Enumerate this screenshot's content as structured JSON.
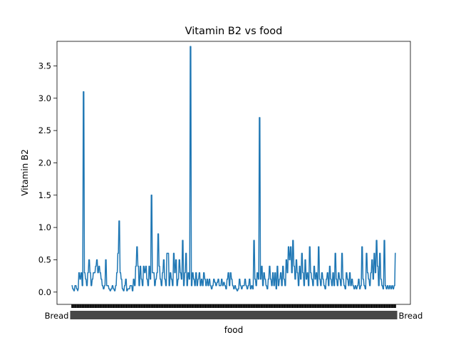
{
  "chart_data": {
    "type": "line",
    "title": "Vitamin B2 vs food",
    "xlabel": "food",
    "ylabel": "Vitamin B2",
    "ylim": [
      -0.19,
      3.88
    ],
    "yticks": [
      0.0,
      0.5,
      1.0,
      1.5,
      2.0,
      2.5,
      3.0,
      3.5
    ],
    "ytick_labels": [
      "0.0",
      "0.5",
      "1.0",
      "1.5",
      "2.0",
      "2.5",
      "3.0",
      "3.5"
    ],
    "grid": false,
    "legend": "none",
    "line_color": "#1f77b4",
    "x_note": "categorical food names; tick labels overlap into an unreadable band",
    "x_edge_labels": [
      "Bread",
      "Bread"
    ],
    "categories_count": 600,
    "series": [
      {
        "values": [
          0.1,
          0.1,
          0.05,
          0.05,
          0.02,
          0.02,
          0.1,
          0.1,
          0.1,
          0.05,
          0.05,
          0.02,
          0.05,
          0.3,
          0.3,
          0.2,
          0.2,
          0.3,
          0.3,
          0.1,
          0.1,
          3.1,
          3.1,
          0.3,
          0.3,
          0.2,
          0.2,
          0.1,
          0.1,
          0.3,
          0.3,
          0.5,
          0.5,
          0.3,
          0.3,
          0.1,
          0.1,
          0.2,
          0.2,
          0.3,
          0.3,
          0.3,
          0.3,
          0.4,
          0.4,
          0.5,
          0.5,
          0.3,
          0.3,
          0.4,
          0.4,
          0.3,
          0.3,
          0.2,
          0.2,
          0.1,
          0.1,
          0.05,
          0.05,
          0.1,
          0.1,
          0.5,
          0.5,
          0.1,
          0.1,
          0.1,
          0.1,
          0.05,
          0.05,
          0.02,
          0.02,
          0.05,
          0.05,
          0.1,
          0.1,
          0.05,
          0.05,
          0.02,
          0.02,
          0.1,
          0.1,
          0.3,
          0.3,
          0.6,
          0.6,
          1.1,
          1.1,
          0.3,
          0.3,
          0.2,
          0.2,
          0.05,
          0.05,
          0.02,
          0.02,
          0.1,
          0.1,
          0.2,
          0.2,
          0.02,
          0.02,
          0.05,
          0.05,
          0.05,
          0.05,
          0.1,
          0.1,
          0.1,
          0.1,
          0.02,
          0.02,
          0.2,
          0.2,
          0.1,
          0.1,
          0.4,
          0.4,
          0.7,
          0.7,
          0.4,
          0.4,
          0.1,
          0.1,
          0.4,
          0.4,
          0.2,
          0.2,
          0.1,
          0.1,
          0.4,
          0.4,
          0.3,
          0.3,
          0.4,
          0.4,
          0.2,
          0.2,
          0.1,
          0.1,
          0.4,
          0.4,
          0.2,
          0.2,
          1.5,
          1.5,
          0.3,
          0.3,
          0.3,
          0.3,
          0.1,
          0.1,
          0.2,
          0.2,
          0.3,
          0.3,
          0.9,
          0.9,
          0.4,
          0.4,
          0.2,
          0.2,
          0.1,
          0.1,
          0.3,
          0.3,
          0.5,
          0.5,
          0.2,
          0.2,
          0.1,
          0.1,
          0.6,
          0.6,
          0.6,
          0.6,
          0.1,
          0.1,
          0.3,
          0.3,
          0.2,
          0.2,
          0.1,
          0.1,
          0.6,
          0.6,
          0.3,
          0.3,
          0.5,
          0.5,
          0.1,
          0.1,
          0.2,
          0.2,
          0.5,
          0.5,
          0.3,
          0.3,
          0.2,
          0.2,
          0.8,
          0.8,
          0.1,
          0.1,
          0.3,
          0.3,
          0.6,
          0.6,
          0.1,
          0.1,
          0.3,
          0.3,
          0.2,
          0.2,
          3.8,
          3.8,
          0.1,
          0.1,
          0.3,
          0.3,
          0.2,
          0.2,
          0.1,
          0.1,
          0.3,
          0.3,
          0.1,
          0.1,
          0.2,
          0.2,
          0.3,
          0.3,
          0.1,
          0.1,
          0.2,
          0.2,
          0.1,
          0.1,
          0.3,
          0.3,
          0.2,
          0.2,
          0.1,
          0.1,
          0.2,
          0.2,
          0.1,
          0.1,
          0.2,
          0.2,
          0.1,
          0.1,
          0.05,
          0.05,
          0.1,
          0.1,
          0.2,
          0.2,
          0.15,
          0.15,
          0.1,
          0.1,
          0.15,
          0.15,
          0.2,
          0.2,
          0.1,
          0.1,
          0.1,
          0.1,
          0.2,
          0.2,
          0.1,
          0.1,
          0.15,
          0.15,
          0.1,
          0.1,
          0.05,
          0.05,
          0.2,
          0.2,
          0.3,
          0.3,
          0.1,
          0.1,
          0.3,
          0.3,
          0.2,
          0.2,
          0.1,
          0.1,
          0.05,
          0.05,
          0.1,
          0.1,
          0.05,
          0.05,
          0.02,
          0.02,
          0.05,
          0.05,
          0.2,
          0.2,
          0.1,
          0.1,
          0.05,
          0.05,
          0.1,
          0.1,
          0.1,
          0.1,
          0.2,
          0.2,
          0.1,
          0.1,
          0.05,
          0.05,
          0.1,
          0.1,
          0.2,
          0.2,
          0.05,
          0.05,
          0.1,
          0.1,
          0.05,
          0.05,
          0.8,
          0.8,
          0.2,
          0.2,
          0.1,
          0.1,
          0.3,
          0.3,
          0.2,
          0.2,
          2.7,
          2.7,
          0.2,
          0.2,
          0.4,
          0.4,
          0.1,
          0.1,
          0.3,
          0.3,
          0.2,
          0.2,
          0.1,
          0.1,
          0.05,
          0.05,
          0.2,
          0.2,
          0.4,
          0.4,
          0.2,
          0.2,
          0.1,
          0.1,
          0.3,
          0.3,
          0.1,
          0.1,
          0.3,
          0.3,
          0.05,
          0.05,
          0.4,
          0.4,
          0.1,
          0.1,
          0.2,
          0.2,
          0.3,
          0.3,
          0.1,
          0.1,
          0.4,
          0.4,
          0.2,
          0.2,
          0.1,
          0.1,
          0.5,
          0.5,
          0.3,
          0.3,
          0.7,
          0.7,
          0.5,
          0.5,
          0.7,
          0.7,
          0.3,
          0.3,
          0.8,
          0.8,
          0.4,
          0.4,
          0.2,
          0.2,
          0.5,
          0.5,
          0.3,
          0.3,
          0.1,
          0.1,
          0.4,
          0.4,
          0.2,
          0.2,
          0.6,
          0.6,
          0.3,
          0.3,
          0.1,
          0.1,
          0.5,
          0.5,
          0.2,
          0.2,
          0.3,
          0.3,
          0.1,
          0.1,
          0.7,
          0.7,
          0.3,
          0.3,
          0.2,
          0.2,
          0.1,
          0.1,
          0.4,
          0.4,
          0.2,
          0.2,
          0.3,
          0.3,
          0.1,
          0.1,
          0.7,
          0.7,
          0.2,
          0.2,
          0.1,
          0.1,
          0.3,
          0.3,
          0.2,
          0.2,
          0.1,
          0.1,
          0.05,
          0.05,
          0.2,
          0.2,
          0.3,
          0.3,
          0.1,
          0.1,
          0.4,
          0.4,
          0.2,
          0.2,
          0.1,
          0.1,
          0.3,
          0.3,
          0.1,
          0.1,
          0.6,
          0.6,
          0.2,
          0.2,
          0.1,
          0.1,
          0.3,
          0.3,
          0.2,
          0.2,
          0.1,
          0.1,
          0.6,
          0.6,
          0.2,
          0.2,
          0.1,
          0.1,
          0.05,
          0.05,
          0.3,
          0.3,
          0.2,
          0.2,
          0.1,
          0.1,
          0.3,
          0.3,
          0.1,
          0.1,
          0.2,
          0.2,
          0.1,
          0.1,
          0.05,
          0.05,
          0.1,
          0.1,
          0.05,
          0.05,
          0.1,
          0.1,
          0.2,
          0.2,
          0.05,
          0.05,
          0.1,
          0.1,
          0.7,
          0.7,
          0.2,
          0.2,
          0.1,
          0.1,
          0.05,
          0.05,
          0.6,
          0.6,
          0.3,
          0.3,
          0.2,
          0.2,
          0.1,
          0.1,
          0.3,
          0.3,
          0.5,
          0.5,
          0.2,
          0.2,
          0.6,
          0.6,
          0.3,
          0.3,
          0.8,
          0.8,
          0.4,
          0.4,
          0.1,
          0.1,
          0.6,
          0.6,
          0.2,
          0.2,
          0.1,
          0.1,
          0.05,
          0.05,
          0.8,
          0.8,
          0.1,
          0.1,
          0.05,
          0.05,
          0.1,
          0.1,
          0.05,
          0.05,
          0.1,
          0.1,
          0.05,
          0.05,
          0.1,
          0.1,
          0.05,
          0.05,
          0.1,
          0.1,
          0.6,
          0.6
        ]
      }
    ]
  }
}
